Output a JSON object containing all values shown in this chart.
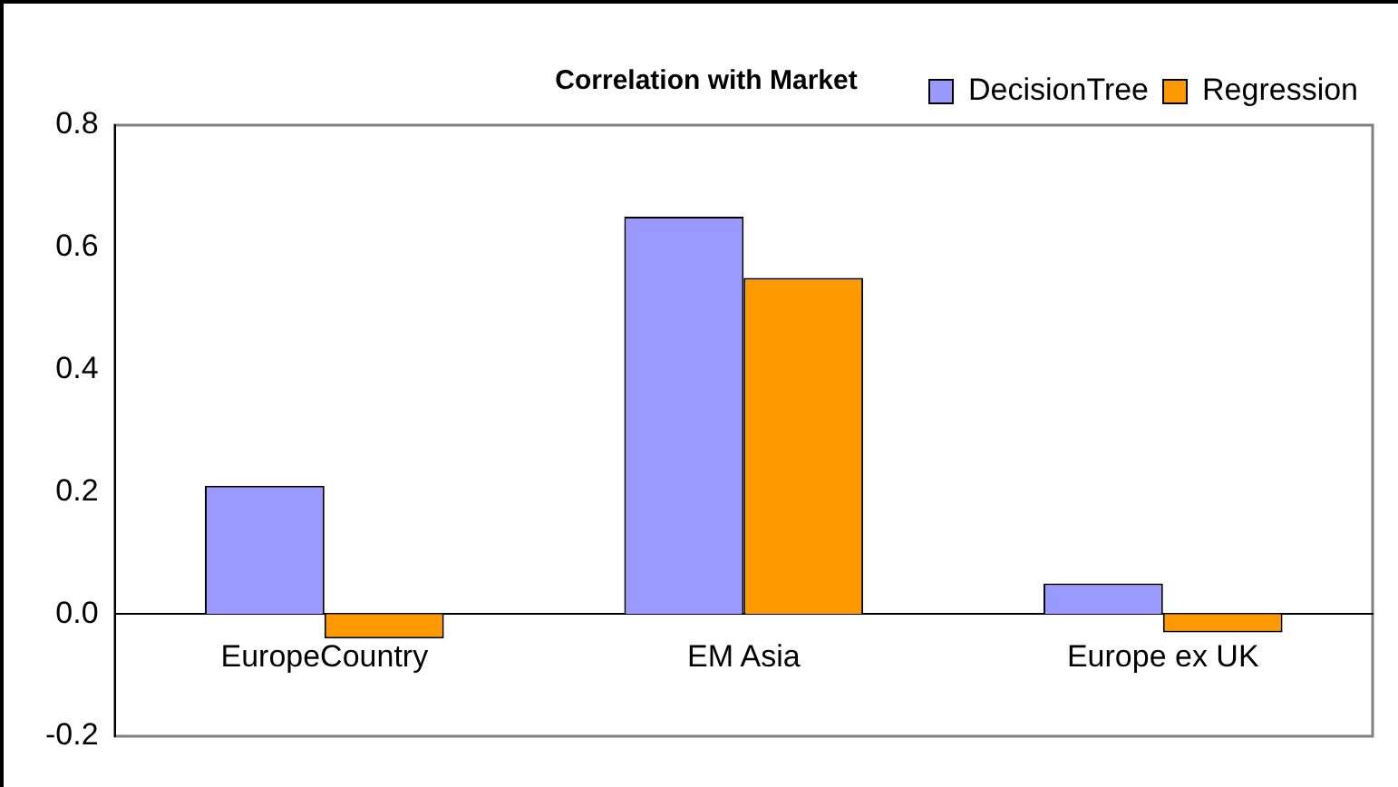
{
  "chart_data": {
    "type": "bar",
    "title": "Correlation with Market",
    "categories": [
      "EuropeCountry",
      "EM Asia",
      "Europe ex UK"
    ],
    "series": [
      {
        "name": "DecisionTree",
        "color": "#9999ff",
        "values": [
          0.21,
          0.65,
          0.05
        ]
      },
      {
        "name": "Regression",
        "color": "#ff9900",
        "values": [
          -0.04,
          0.55,
          -0.03
        ]
      }
    ],
    "ylim": [
      -0.2,
      0.8
    ],
    "yticks": [
      {
        "value": -0.2,
        "label": "-0.2"
      },
      {
        "value": 0,
        "label": "0.0"
      },
      {
        "value": 0.2,
        "label": "0.2"
      },
      {
        "value": 0.4,
        "label": "0.4"
      },
      {
        "value": 0.6,
        "label": "0.6"
      },
      {
        "value": 0.8,
        "label": "0.8"
      }
    ],
    "grid": false,
    "legend": "top right"
  }
}
